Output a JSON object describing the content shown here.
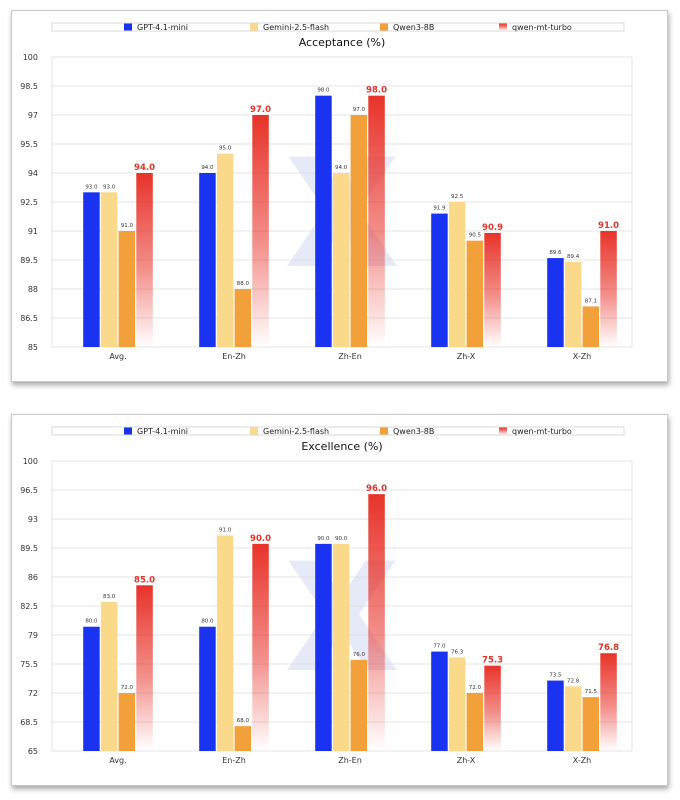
{
  "colors": {
    "gpt": "#1a33f0",
    "gemini": "#fad98a",
    "qwen3": "#f2a03a",
    "qwen_mt_top": "#e8332a",
    "grid": "#dcdcdc",
    "highlight_text": "#e0352b"
  },
  "chart_data": [
    {
      "type": "bar",
      "title": "Acceptance (%)",
      "categories": [
        "Avg.",
        "En-Zh",
        "Zh-En",
        "Zh-X",
        "X-Zh"
      ],
      "ylim": [
        85,
        100
      ],
      "yticks": [
        "85",
        "86.5",
        "88",
        "89.5",
        "91",
        "92.5",
        "94",
        "95.5",
        "97",
        "98.5",
        "100"
      ],
      "series": [
        {
          "name": "GPT-4.1-mini",
          "key": "gpt",
          "values": [
            93.0,
            94.0,
            98.0,
            91.9,
            89.6
          ],
          "labels": [
            "93.0",
            "94.0",
            "98.0",
            "91.9",
            "89.6"
          ]
        },
        {
          "name": "Gemini-2.5-flash",
          "key": "gemini",
          "values": [
            93.0,
            95.0,
            94.0,
            92.5,
            89.4
          ],
          "labels": [
            "93.0",
            "95.0",
            "94.0",
            "92.5",
            "89.4"
          ]
        },
        {
          "name": "Qwen3-8B",
          "key": "qwen3",
          "values": [
            91.0,
            88.0,
            97.0,
            90.5,
            87.1
          ],
          "labels": [
            "91.0",
            "88.0",
            "97.0",
            "90.5",
            "87.1"
          ]
        },
        {
          "name": "qwen-mt-turbo",
          "key": "qwen_mt",
          "values": [
            94.0,
            97.0,
            98.0,
            90.9,
            91.0
          ],
          "labels": [
            "94.0",
            "97.0",
            "98.0",
            "90.9",
            "91.0"
          ],
          "highlight": true
        }
      ]
    },
    {
      "type": "bar",
      "title": "Excellence (%)",
      "categories": [
        "Avg.",
        "En-Zh",
        "Zh-En",
        "Zh-X",
        "X-Zh"
      ],
      "ylim": [
        65,
        100
      ],
      "yticks": [
        "65",
        "68.5",
        "72",
        "75.5",
        "79",
        "82.5",
        "86",
        "89.5",
        "93",
        "96.5",
        "100"
      ],
      "series": [
        {
          "name": "GPT-4.1-mini",
          "key": "gpt",
          "values": [
            80.0,
            80.0,
            90.0,
            77.0,
            73.5
          ],
          "labels": [
            "80.0",
            "80.0",
            "90.0",
            "77.0",
            "73.5"
          ]
        },
        {
          "name": "Gemini-2.5-flash",
          "key": "gemini",
          "values": [
            83.0,
            91.0,
            90.0,
            76.3,
            72.8
          ],
          "labels": [
            "83.0",
            "91.0",
            "90.0",
            "76.3",
            "72.8"
          ]
        },
        {
          "name": "Qwen3-8B",
          "key": "qwen3",
          "values": [
            72.0,
            68.0,
            76.0,
            72.0,
            71.5
          ],
          "labels": [
            "72.0",
            "68.0",
            "76.0",
            "72.0",
            "71.5"
          ]
        },
        {
          "name": "qwen-mt-turbo",
          "key": "qwen_mt",
          "values": [
            85.0,
            90.0,
            96.0,
            75.3,
            76.8
          ],
          "labels": [
            "85.0",
            "90.0",
            "96.0",
            "75.3",
            "76.8"
          ],
          "highlight": true
        }
      ]
    }
  ]
}
